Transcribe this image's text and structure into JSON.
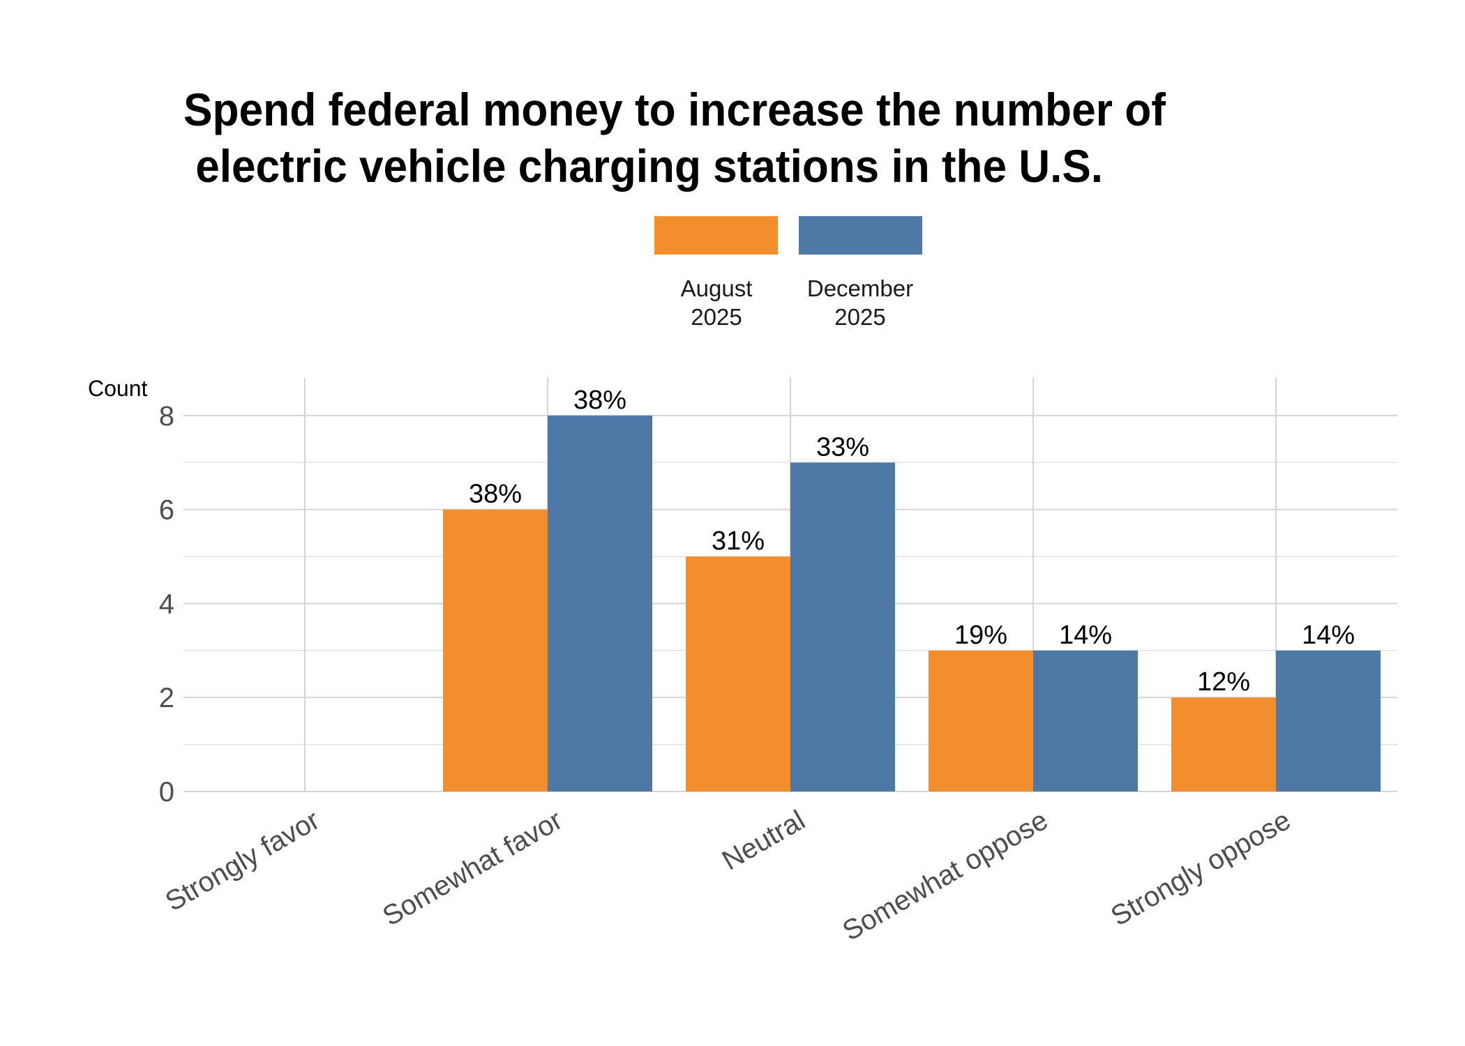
{
  "chart_data": {
    "type": "bar",
    "title_lines": [
      "Spend federal money to increase the number of",
      " electric vehicle charging stations in the U.S."
    ],
    "xlabel": "",
    "ylabel": "Count",
    "categories": [
      "Strongly favor",
      "Somewhat favor",
      "Neutral",
      "Somewhat oppose",
      "Strongly oppose"
    ],
    "series": [
      {
        "name": "August 2025",
        "name_lines": [
          "August",
          "2025"
        ],
        "color": "#f28e2b",
        "values": [
          0,
          6,
          5,
          3,
          2
        ],
        "labels": [
          null,
          "38%",
          "31%",
          "19%",
          "12%"
        ]
      },
      {
        "name": "December 2025",
        "name_lines": [
          "December",
          "2025"
        ],
        "color": "#4e79a7",
        "values": [
          0,
          8,
          7,
          3,
          3
        ],
        "labels": [
          null,
          "38%",
          "33%",
          "14%",
          "14%"
        ]
      }
    ],
    "ylim": [
      0,
      8.8
    ],
    "yticks": [
      0,
      2,
      4,
      6,
      8
    ],
    "grid": true,
    "legend_position": "top"
  }
}
